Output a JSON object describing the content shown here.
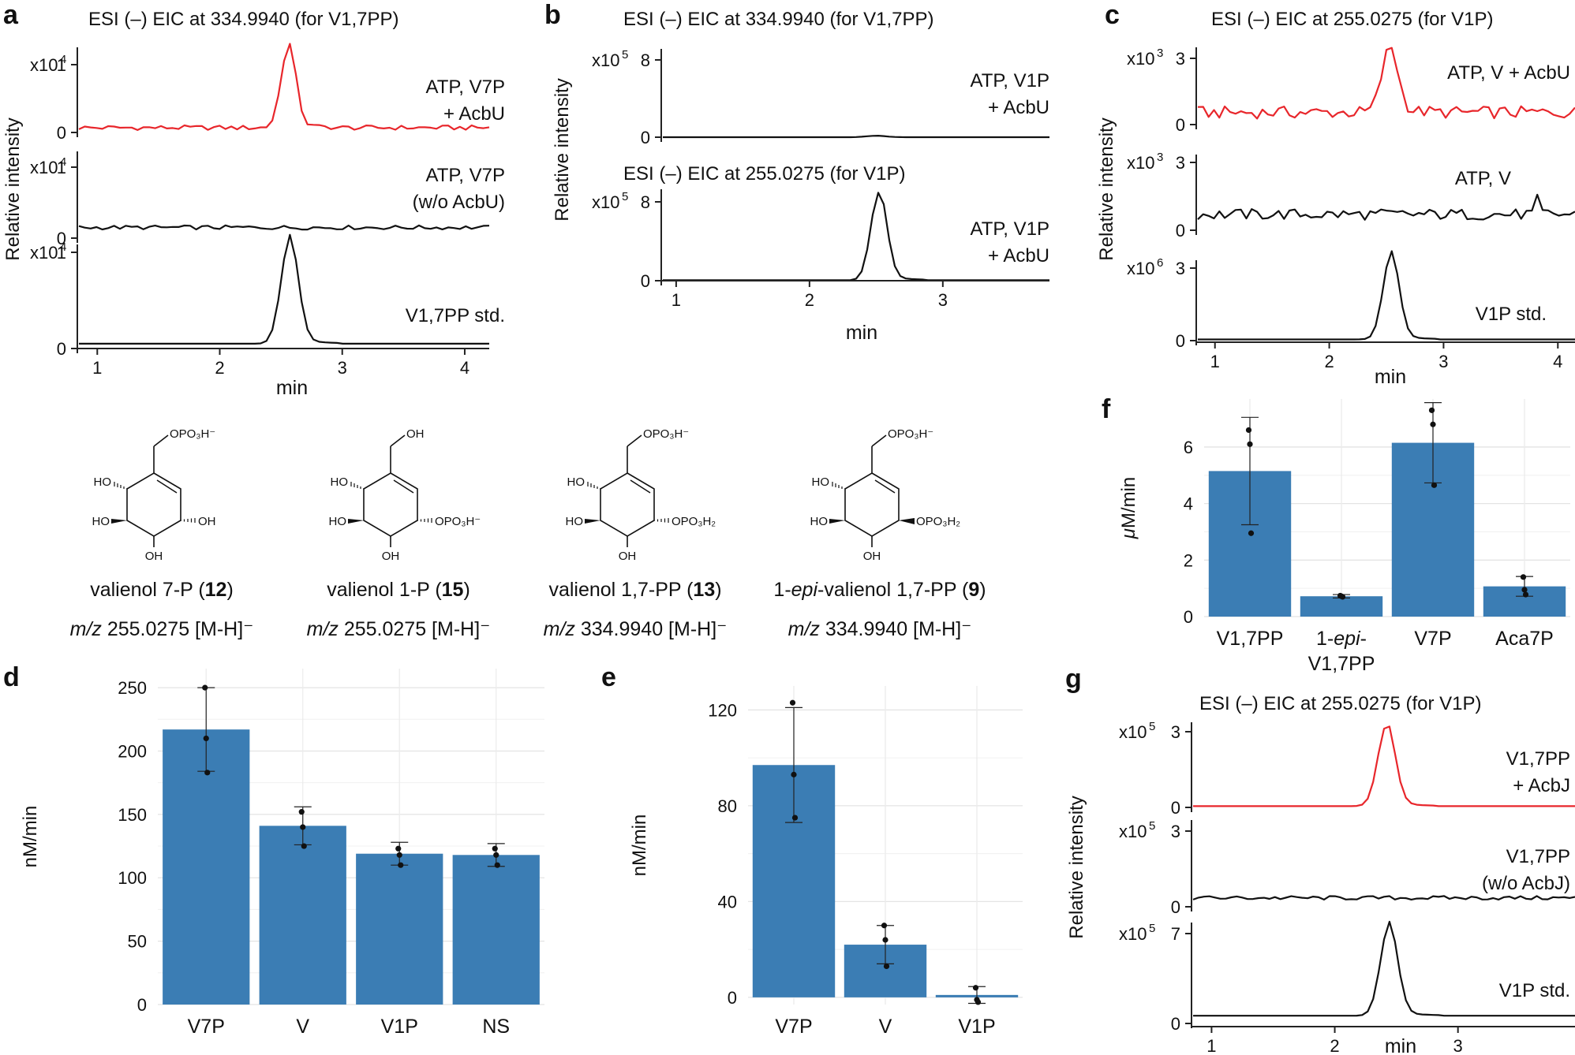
{
  "chart_data": [
    {
      "panel": "a",
      "type": "line",
      "title": "ESI (–) EIC at 334.9940 (for V1,7PP)",
      "ylabel": "Relative intensity",
      "xlabel": "min",
      "x_ticks": [
        "1",
        "2",
        "3",
        "4"
      ],
      "xlim": [
        0.85,
        4.2
      ],
      "grid": false,
      "traces": [
        {
          "name": "ATP, V7P + AcbU",
          "label_lines": [
            "ATP, V7P",
            "+ AcbU"
          ],
          "color": "#e8262b",
          "multiplier": "x10",
          "exp": "4",
          "y_ticks": [
            "0",
            "1"
          ],
          "ylim": [
            0,
            1.0
          ],
          "peak_center": 2.56,
          "peak_width": 0.06,
          "peak_height": 1.2,
          "baseline": 0.07,
          "noise": 0.035
        },
        {
          "name": "ATP, V7P (w/o AcbU)",
          "label_lines": [
            "ATP, V7P",
            "(w/o AcbU)"
          ],
          "color": "#111111",
          "multiplier": "x10",
          "exp": "4",
          "y_ticks": [
            "0",
            "1"
          ],
          "ylim": [
            0,
            1.0
          ],
          "peak_center": 0,
          "peak_width": 0.1,
          "peak_height": 0,
          "baseline": 0.15,
          "noise": 0.03
        },
        {
          "name": "V1,7PP std.",
          "label_lines": [
            "V1,7PP std."
          ],
          "color": "#111111",
          "multiplier": "x10",
          "exp": "4",
          "y_ticks": [
            "0",
            "1"
          ],
          "ylim": [
            0,
            1.0
          ],
          "peak_center": 2.57,
          "peak_width": 0.07,
          "peak_height": 1.08,
          "baseline": 0.05,
          "noise": 0.0
        }
      ]
    },
    {
      "panel": "b",
      "type": "line",
      "ylabel": "Relative intensity",
      "xlabel": "min",
      "x_ticks": [
        "1",
        "2",
        "3"
      ],
      "xlim": [
        0.9,
        3.8
      ],
      "grid": false,
      "traces": [
        {
          "title": "ESI (–) EIC at 334.9940 (for V1,7PP)",
          "name": "ATP, V1P + AcbU",
          "label_lines": [
            "ATP, V1P",
            "+ AcbU"
          ],
          "color": "#111111",
          "multiplier": "x10",
          "exp": "5",
          "y_ticks": [
            "0",
            "8"
          ],
          "ylim": [
            0,
            8
          ],
          "peak_center": 2.5,
          "peak_width": 0.07,
          "peak_height": 0.15,
          "baseline": 0.0,
          "noise": 0.0
        },
        {
          "title": "ESI (–) EIC at 255.0275 (for V1P)",
          "name": "ATP, V1P + AcbU",
          "label_lines": [
            "ATP, V1P",
            "+ AcbU"
          ],
          "color": "#111111",
          "multiplier": "x10",
          "exp": "5",
          "y_ticks": [
            "0",
            "8"
          ],
          "ylim": [
            0,
            8
          ],
          "peak_center": 2.52,
          "peak_width": 0.06,
          "peak_height": 8.9,
          "baseline": 0.05,
          "noise": 0.0
        }
      ]
    },
    {
      "panel": "c",
      "type": "line",
      "title": "ESI (–) EIC at 255.0275 (for V1P)",
      "ylabel": "Relative intensity",
      "xlabel": "min",
      "x_ticks": [
        "1",
        "2",
        "3",
        "4"
      ],
      "xlim": [
        0.85,
        4.15
      ],
      "grid": false,
      "traces": [
        {
          "name": "ATP, V + AcbU",
          "label_lines": [
            "ATP, V + AcbU"
          ],
          "color": "#e8262b",
          "multiplier": "x10",
          "exp": "3",
          "y_ticks": [
            "0",
            "3"
          ],
          "ylim": [
            0,
            3
          ],
          "peak_center": 2.53,
          "peak_width": 0.07,
          "peak_height": 2.9,
          "baseline": 0.55,
          "noise": 0.28
        },
        {
          "name": "ATP, V",
          "label_lines": [
            "ATP, V"
          ],
          "color": "#111111",
          "multiplier": "x10",
          "exp": "3",
          "y_ticks": [
            "0",
            "3"
          ],
          "ylim": [
            0,
            3
          ],
          "peak_center": 3.82,
          "peak_width": 0.02,
          "peak_height": 0.6,
          "baseline": 0.7,
          "noise": 0.25
        },
        {
          "name": "V1P std.",
          "label_lines": [
            "V1P std."
          ],
          "color": "#111111",
          "multiplier": "x10",
          "exp": "6",
          "y_ticks": [
            "0",
            "3"
          ],
          "ylim": [
            0,
            3
          ],
          "peak_center": 2.54,
          "peak_width": 0.07,
          "peak_height": 3.5,
          "baseline": 0.05,
          "noise": 0.0
        }
      ]
    },
    {
      "panel": "d",
      "type": "bar",
      "categories": [
        "V7P",
        "V",
        "V1P",
        "NS"
      ],
      "values": [
        217,
        141,
        119,
        118
      ],
      "errors": [
        33,
        15,
        9,
        9
      ],
      "points": [
        [
          250,
          210,
          183
        ],
        [
          152,
          140,
          125
        ],
        [
          123,
          118,
          110
        ],
        [
          123,
          118,
          110
        ]
      ],
      "ylabel": "nM/min",
      "y_ticks": [
        "0",
        "50",
        "100",
        "150",
        "200",
        "250"
      ],
      "ylim": [
        0,
        265
      ],
      "color": "#3b7db4",
      "grid": true
    },
    {
      "panel": "e",
      "type": "bar",
      "categories": [
        "V7P",
        "V",
        "V1P"
      ],
      "values": [
        97,
        22,
        1
      ],
      "errors": [
        24,
        8,
        3.5
      ],
      "points": [
        [
          123,
          93,
          75
        ],
        [
          30,
          24,
          13
        ],
        [
          4,
          -1,
          -2
        ]
      ],
      "ylabel": "nM/min",
      "y_ticks": [
        "0",
        "40",
        "80",
        "120"
      ],
      "ylim": [
        -3,
        130
      ],
      "color": "#3b7db4",
      "grid": true
    },
    {
      "panel": "f",
      "type": "bar",
      "categories": [
        "V1,7PP",
        "1-epi-V1,7PP",
        "V7P",
        "Aca7P"
      ],
      "category_lines": [
        [
          "V1,7PP"
        ],
        [
          "1-epi-",
          "V1,7PP"
        ],
        [
          "V7P"
        ],
        [
          "Aca7P"
        ]
      ],
      "values": [
        5.15,
        0.72,
        6.15,
        1.07
      ],
      "errors": [
        1.9,
        0.06,
        1.42,
        0.35
      ],
      "points": [
        [
          6.6,
          6.1,
          2.95
        ],
        [
          0.74,
          0.72,
          0.7
        ],
        [
          7.3,
          6.8,
          4.65
        ],
        [
          1.4,
          0.95,
          0.78
        ]
      ],
      "ylabel": "μM/min",
      "y_ticks": [
        "0",
        "2",
        "4",
        "6"
      ],
      "ylim": [
        0,
        7.7
      ],
      "color": "#3b7db4",
      "grid": true
    },
    {
      "panel": "g",
      "type": "line",
      "title": "ESI (–) EIC at 255.0275 (for V1P)",
      "ylabel": "Relative intensity",
      "xlabel": "min",
      "x_ticks": [
        "1",
        "2",
        "3"
      ],
      "xlim": [
        0.85,
        3.95
      ],
      "grid": false,
      "traces": [
        {
          "name": "V1,7PP + AcbJ",
          "label_lines": [
            "V1,7PP",
            "+ AcbJ"
          ],
          "color": "#e8262b",
          "multiplier": "x10",
          "exp": "5",
          "y_ticks": [
            "0",
            "3"
          ],
          "ylim": [
            0,
            3
          ],
          "peak_center": 2.42,
          "peak_width": 0.07,
          "peak_height": 3.2,
          "baseline": 0.05,
          "noise": 0.0
        },
        {
          "name": "V1,7PP (w/o AcbJ)",
          "label_lines": [
            "V1,7PP",
            "(w/o AcbJ)"
          ],
          "color": "#111111",
          "multiplier": "x10",
          "exp": "5",
          "y_ticks": [
            "0",
            "3"
          ],
          "ylim": [
            0,
            3
          ],
          "peak_center": 0,
          "peak_width": 0.1,
          "peak_height": 0,
          "baseline": 0.35,
          "noise": 0.08
        },
        {
          "name": "V1P std.",
          "label_lines": [
            "V1P std."
          ],
          "color": "#111111",
          "multiplier": "x10",
          "exp": "5",
          "y_ticks": [
            "0",
            "7"
          ],
          "ylim": [
            0,
            7
          ],
          "peak_center": 2.44,
          "peak_width": 0.07,
          "peak_height": 7.0,
          "baseline": 0.6,
          "noise": 0.0
        }
      ]
    }
  ],
  "panel_labels": [
    "a",
    "b",
    "c",
    "d",
    "e",
    "f",
    "g"
  ],
  "compounds": [
    {
      "name": "valienol 7-P",
      "number": "12",
      "mz": "255.0275",
      "ion": "[M-H]⁻",
      "group_c7": "OPO₃H⁻",
      "group_c1": "OH",
      "c1_stereo": "hash"
    },
    {
      "name": "valienol 1-P",
      "number": "15",
      "mz": "255.0275",
      "ion": "[M-H]⁻",
      "group_c7": "OH",
      "group_c1": "OPO₃H⁻",
      "c1_stereo": "hash"
    },
    {
      "name": "valienol 1,7-PP",
      "number": "13",
      "mz": "334.9940",
      "ion": "[M-H]⁻",
      "group_c7": "OPO₃H⁻",
      "group_c1": "OPO₃H₂",
      "c1_stereo": "hash"
    },
    {
      "name_prefix": "1-",
      "name_epi": "epi",
      "name_rest": "-valienol 1,7-PP",
      "number": "9",
      "mz": "334.9940",
      "ion": "[M-H]⁻",
      "group_c7": "OPO₃H⁻",
      "group_c1": "OPO₃H₂",
      "c1_stereo": "wedge"
    }
  ],
  "compound_labels": {
    "mz_prefix": "m/z",
    "ho": "HO",
    "oh": "OH"
  }
}
